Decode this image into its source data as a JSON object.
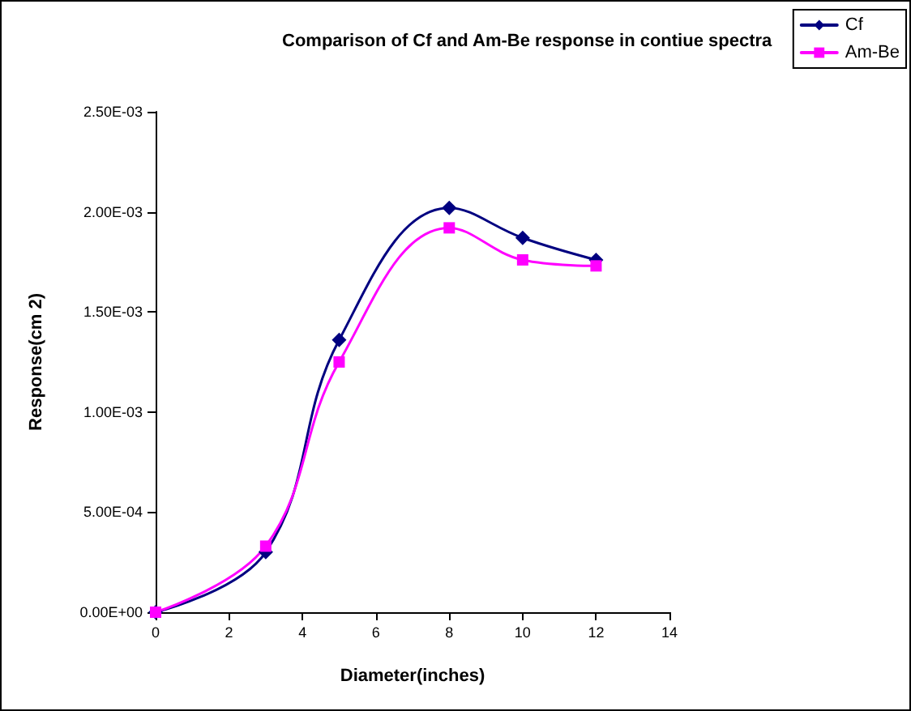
{
  "chart_data": {
    "type": "line",
    "title": "Comparison of Cf and Am-Be response in contiue spectra",
    "xlabel": "Diameter(inches)",
    "ylabel": "Response(cm 2)",
    "x": [
      0,
      3,
      5,
      8,
      10,
      12
    ],
    "series": [
      {
        "name": "Cf",
        "color": "#000080",
        "marker": "diamond",
        "values": [
          0,
          0.0003,
          0.00136,
          0.00202,
          0.00187,
          0.00176
        ]
      },
      {
        "name": "Am-Be",
        "color": "#ff00ff",
        "marker": "square",
        "values": [
          0,
          0.00033,
          0.00125,
          0.00192,
          0.00176,
          0.00173
        ]
      }
    ],
    "xlim": [
      0,
      14
    ],
    "xticks": [
      0,
      2,
      4,
      6,
      8,
      10,
      12,
      14
    ],
    "ylim": [
      0,
      0.0025
    ],
    "yticks": [
      {
        "value": 0,
        "label": "0.00E+00"
      },
      {
        "value": 0.0005,
        "label": "5.00E-04"
      },
      {
        "value": 0.001,
        "label": "1.00E-03"
      },
      {
        "value": 0.0015,
        "label": "1.50E-03"
      },
      {
        "value": 0.002,
        "label": "2.00E-03"
      },
      {
        "value": 0.0025,
        "label": "2.50E-03"
      }
    ],
    "grid": false,
    "legend": "top right",
    "line_style": "solid"
  }
}
